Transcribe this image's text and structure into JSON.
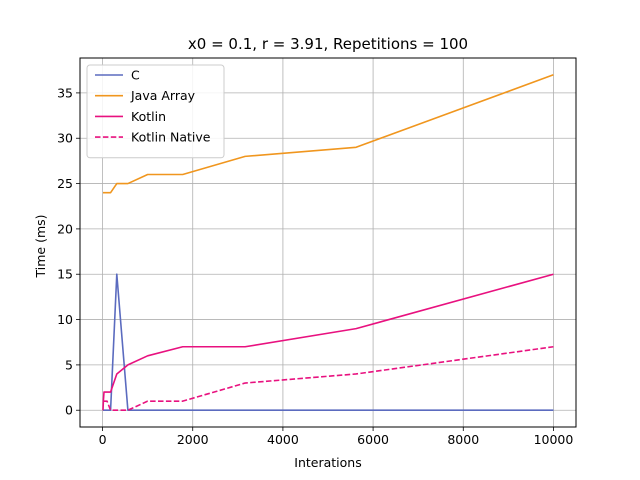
{
  "chart_data": {
    "type": "line",
    "title": "x0 = 0.1, r = 3.91, Repetitions = 100",
    "xlabel": "Interations",
    "ylabel": "Time (ms)",
    "xlim": [
      -500,
      10500
    ],
    "ylim": [
      -1.85,
      38.85
    ],
    "xticks": [
      0,
      2000,
      4000,
      6000,
      8000,
      10000
    ],
    "yticks": [
      0,
      5,
      10,
      15,
      20,
      25,
      30,
      35
    ],
    "grid": true,
    "legend_position": "upper-left",
    "x": [
      10,
      18,
      32,
      56,
      100,
      178,
      316,
      562,
      1000,
      1778,
      3162,
      5623,
      10000
    ],
    "series": [
      {
        "name": "C",
        "color": "#5b6bbf",
        "dash": "solid",
        "values": [
          0,
          0,
          0,
          0,
          0,
          0,
          15,
          0,
          0,
          0,
          0,
          0,
          0
        ]
      },
      {
        "name": "Java Array",
        "color": "#f0961e",
        "dash": "solid",
        "values": [
          24,
          24,
          24,
          24,
          24,
          24,
          25,
          25,
          26,
          26,
          28,
          29,
          37
        ]
      },
      {
        "name": "Kotlin",
        "color": "#e8117f",
        "dash": "solid",
        "values": [
          0,
          1,
          2,
          2,
          2,
          2,
          4,
          5,
          6,
          7,
          7,
          9,
          15
        ]
      },
      {
        "name": "Kotlin Native",
        "color": "#e8117f",
        "dash": "dashed",
        "values": [
          1,
          1,
          1,
          1,
          1,
          0,
          0,
          0,
          1,
          1,
          3,
          4,
          7
        ]
      }
    ]
  }
}
